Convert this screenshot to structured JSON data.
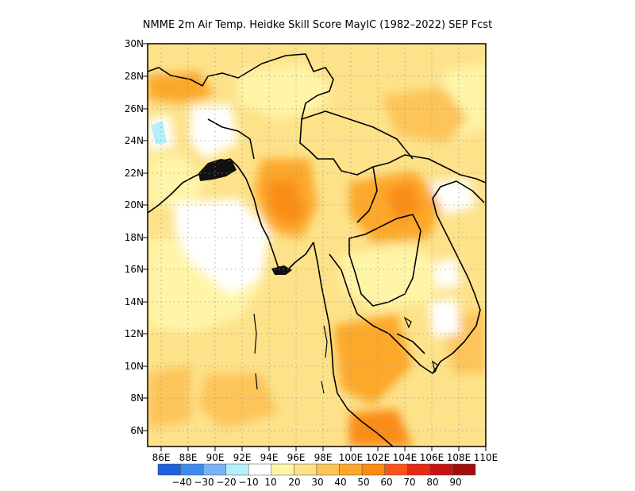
{
  "title": "NMME 2m Air Temp. Heidke Skill Score MayIC (1982–2022) SEP Fcst",
  "map": {
    "x_labels": [
      "86E",
      "88E",
      "90E",
      "92E",
      "94E",
      "96E",
      "98E",
      "100E",
      "102E",
      "104E",
      "106E",
      "108E",
      "110E"
    ],
    "y_labels": [
      "6N",
      "8N",
      "10N",
      "12N",
      "14N",
      "16N",
      "18N",
      "20N",
      "22N",
      "24N",
      "26N",
      "28N",
      "30N"
    ],
    "lon_range": [
      85,
      110
    ],
    "lat_range": [
      5,
      30
    ],
    "grid_style": "dotted"
  },
  "colorbar": {
    "colors": [
      "#1f5fe0",
      "#3c8cf0",
      "#78b4f5",
      "#b4f0fa",
      "#ffffff",
      "#fff5a8",
      "#fde28a",
      "#fdc45a",
      "#fca82a",
      "#fb8c12",
      "#f8541c",
      "#e62a14",
      "#c81212",
      "#a00e0e"
    ],
    "labels": [
      "−40",
      "−30",
      "−20",
      "−10",
      "10",
      "20",
      "30",
      "40",
      "50",
      "60",
      "70",
      "80",
      "90"
    ]
  }
}
